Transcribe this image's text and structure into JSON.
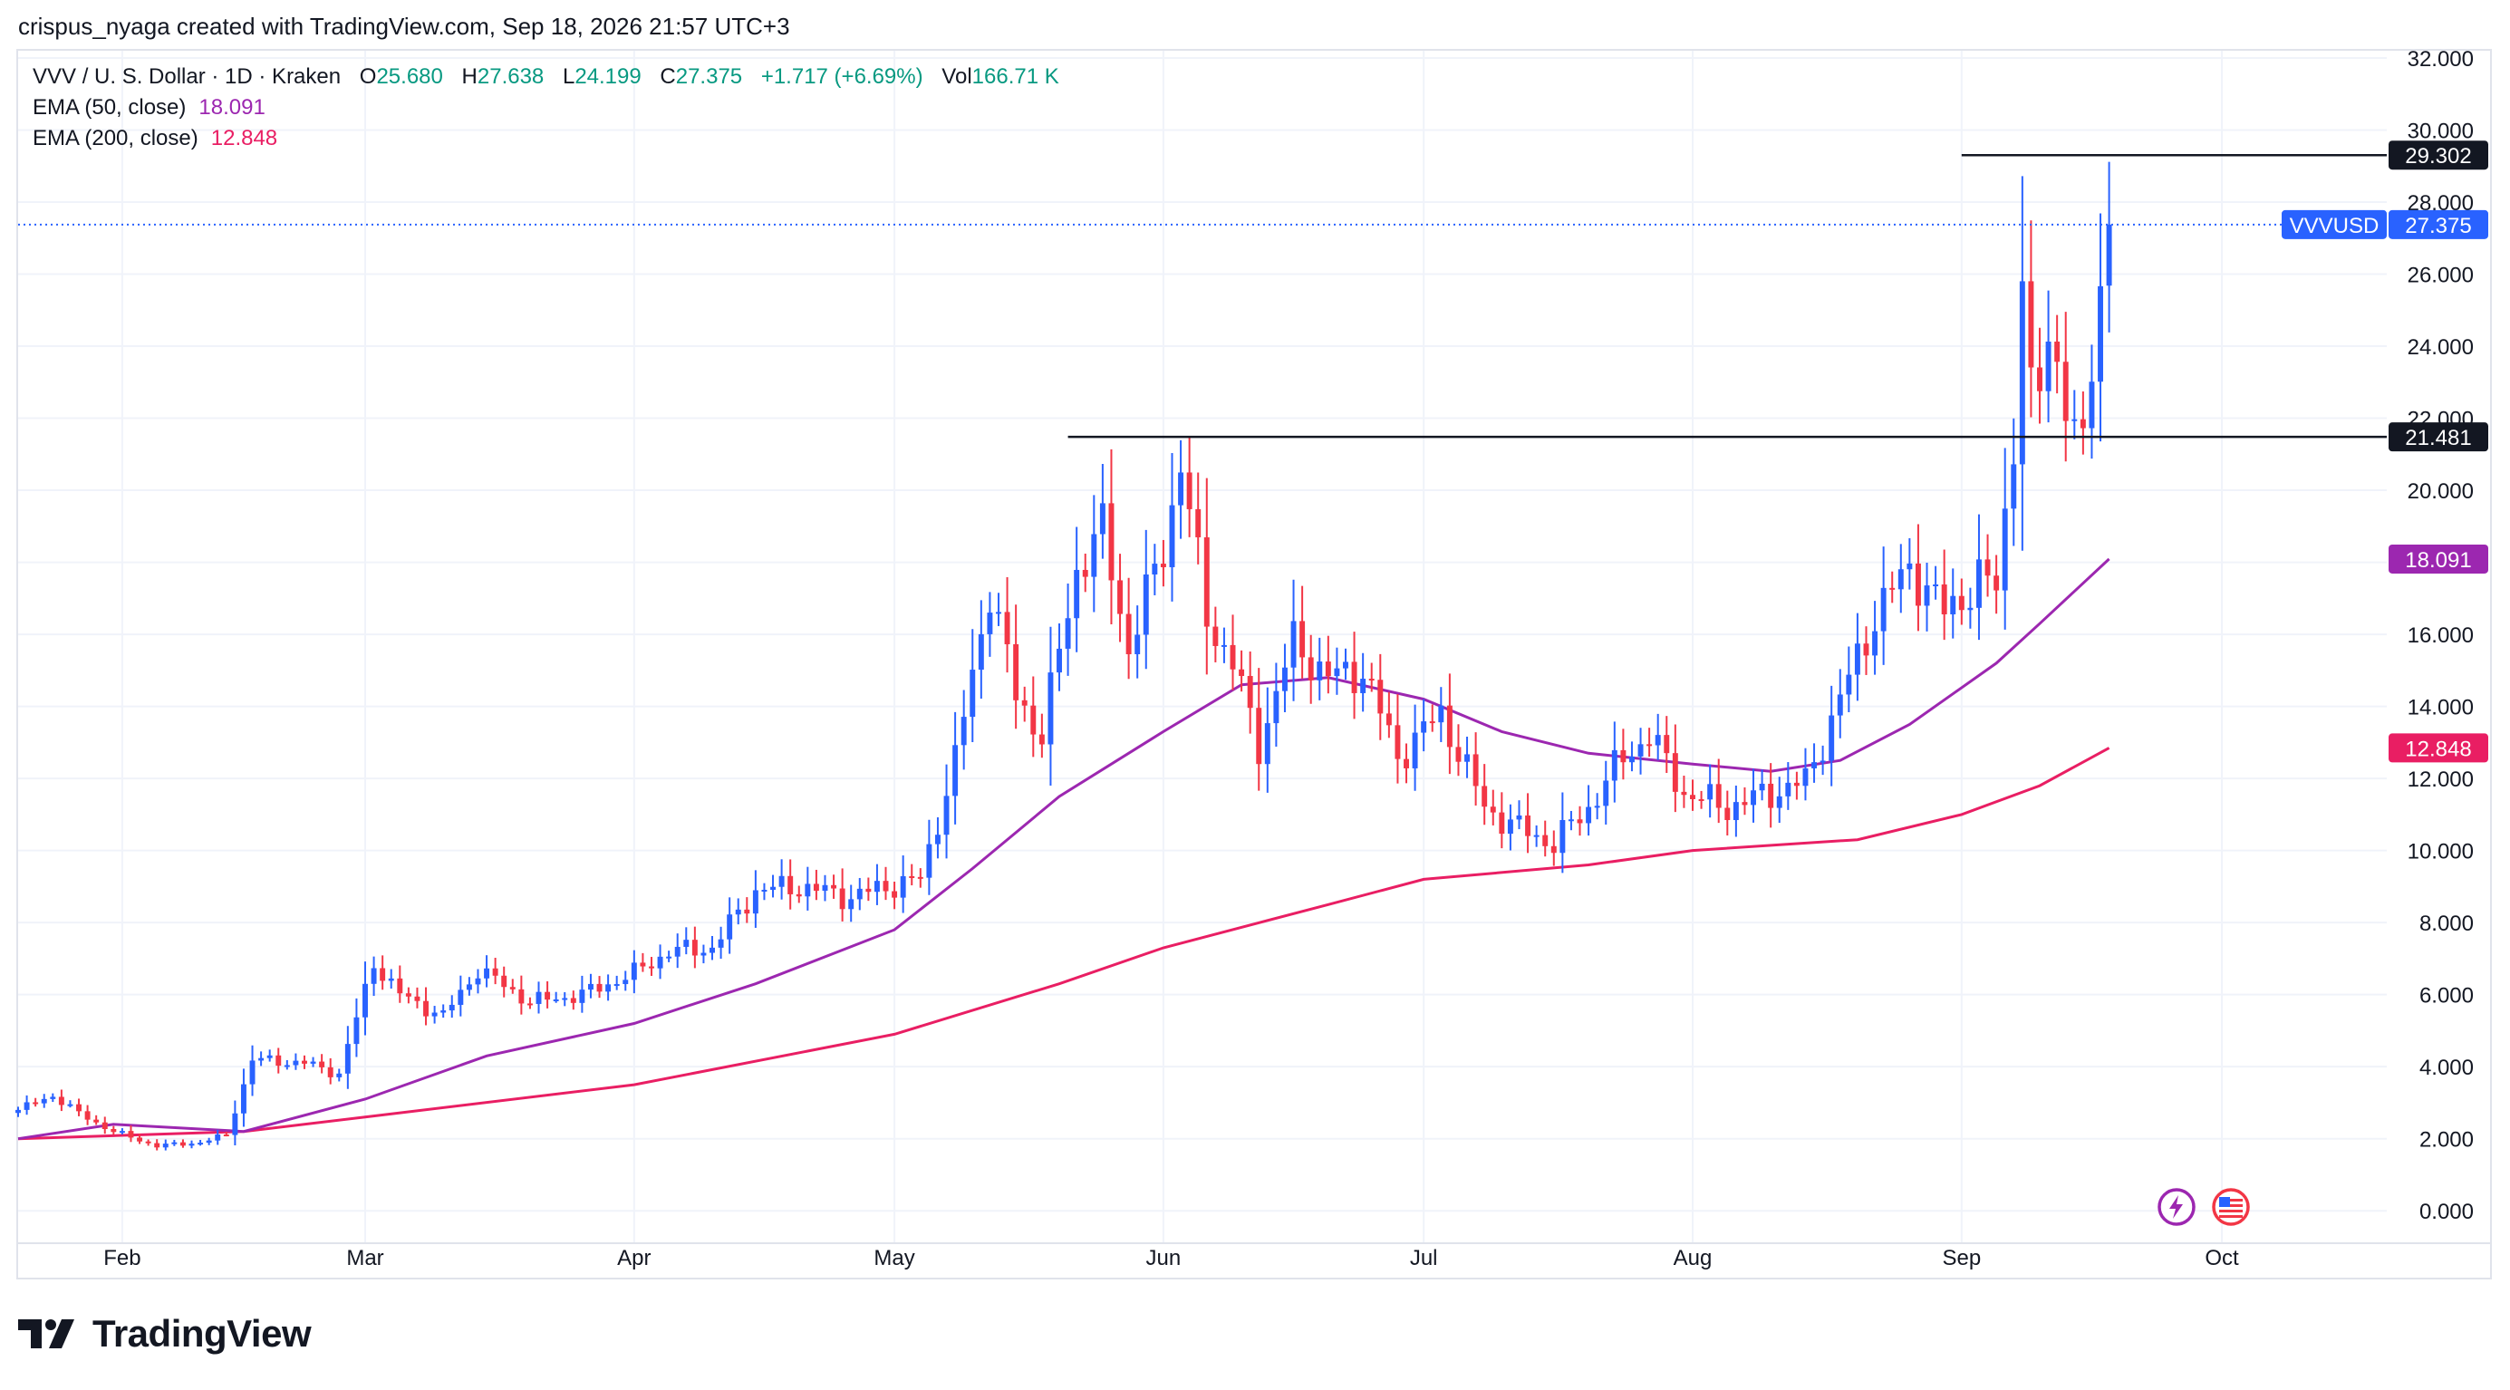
{
  "attribution": "crispus_nyaga created with TradingView.com, Sep 18, 2026 21:57 UTC+3",
  "legend": {
    "symbol": "VVV / U. S. Dollar · 1D · Kraken",
    "o_label": "O",
    "o": "25.680",
    "h_label": "H",
    "h": "27.638",
    "l_label": "L",
    "l": "24.199",
    "c_label": "C",
    "c": "27.375",
    "change": "+1.717 (+6.69%)",
    "vol_label": "Vol",
    "vol": "166.71 K",
    "ema50_label": "EMA (50, close)",
    "ema50": "18.091",
    "ema200_label": "EMA (200, close)",
    "ema200": "12.848"
  },
  "brand": "TradingView",
  "icons": [
    "lightning-icon",
    "us-flag-icon"
  ],
  "chart_data": {
    "type": "candlestick",
    "title": "",
    "x_tick_labels": [
      "Feb",
      "Mar",
      "Apr",
      "May",
      "Jun",
      "Jul",
      "Aug",
      "Sep",
      "Oct"
    ],
    "x_tick_dates": [
      "2026-02-01",
      "2026-03-01",
      "2026-04-01",
      "2026-05-01",
      "2026-06-01",
      "2026-07-01",
      "2026-08-01",
      "2026-09-01",
      "2026-10-01"
    ],
    "x_range": [
      "2026-01-20",
      "2026-10-20"
    ],
    "y_tick_labels": [
      "0.000",
      "2.000",
      "4.000",
      "6.000",
      "8.000",
      "10.000",
      "12.000",
      "14.000",
      "16.000",
      "18.000",
      "20.000",
      "22.000",
      "24.000",
      "26.000",
      "28.000",
      "30.000",
      "32.000"
    ],
    "ylim": [
      -0.9,
      32.2
    ],
    "colors": {
      "up": "#2962ff",
      "down": "#f23645",
      "ema50": "#9c27b0",
      "ema200": "#e91e63",
      "price_line": "#2962ff",
      "hline": "#131722",
      "grid": "#f0f3fa"
    },
    "horizontal_lines": [
      {
        "value": 29.302,
        "label": "29.302",
        "from": "2026-09-01"
      },
      {
        "value": 21.481,
        "label": "21.481",
        "from": "2026-05-21"
      }
    ],
    "last_price": {
      "symbol": "VVVUSD",
      "value": 27.375,
      "label": "27.375"
    },
    "ema50_tag": "18.091",
    "ema200_tag": "12.848",
    "anchors": [
      [
        "2026-01-20",
        2.8
      ],
      [
        "2026-01-24",
        3.2
      ],
      [
        "2026-01-27",
        2.7
      ],
      [
        "2026-01-31",
        2.2
      ],
      [
        "2026-02-05",
        1.8
      ],
      [
        "2026-02-10",
        1.9
      ],
      [
        "2026-02-13",
        2.1
      ],
      [
        "2026-02-16",
        4.2
      ],
      [
        "2026-02-22",
        4.1
      ],
      [
        "2026-02-26",
        3.8
      ],
      [
        "2026-03-02",
        6.9
      ],
      [
        "2026-03-05",
        6.0
      ],
      [
        "2026-03-10",
        5.4
      ],
      [
        "2026-03-14",
        6.7
      ],
      [
        "2026-03-20",
        5.8
      ],
      [
        "2026-03-26",
        6.0
      ],
      [
        "2026-04-01",
        6.6
      ],
      [
        "2026-04-05",
        7.2
      ],
      [
        "2026-04-10",
        7.3
      ],
      [
        "2026-04-15",
        8.9
      ],
      [
        "2026-04-20",
        9.0
      ],
      [
        "2026-04-26",
        8.7
      ],
      [
        "2026-04-30",
        9.0
      ],
      [
        "2026-05-04",
        9.2
      ],
      [
        "2026-05-08",
        12.5
      ],
      [
        "2026-05-12",
        17.3
      ],
      [
        "2026-05-15",
        14.3
      ],
      [
        "2026-05-18",
        13.2
      ],
      [
        "2026-05-22",
        17.8
      ],
      [
        "2026-05-25",
        18.9
      ],
      [
        "2026-05-28",
        15.6
      ],
      [
        "2026-06-01",
        18.4
      ],
      [
        "2026-06-03",
        20.8
      ],
      [
        "2026-06-06",
        16.5
      ],
      [
        "2026-06-09",
        15.2
      ],
      [
        "2026-06-12",
        12.9
      ],
      [
        "2026-06-16",
        15.8
      ],
      [
        "2026-06-20",
        14.8
      ],
      [
        "2026-06-24",
        15.0
      ],
      [
        "2026-06-28",
        12.6
      ],
      [
        "2026-07-03",
        13.8
      ],
      [
        "2026-07-08",
        11.2
      ],
      [
        "2026-07-12",
        10.6
      ],
      [
        "2026-07-16",
        10.2
      ],
      [
        "2026-07-20",
        11.2
      ],
      [
        "2026-07-24",
        12.6
      ],
      [
        "2026-07-27",
        13.2
      ],
      [
        "2026-07-31",
        11.6
      ],
      [
        "2026-08-05",
        11.2
      ],
      [
        "2026-08-10",
        11.6
      ],
      [
        "2026-08-14",
        11.9
      ],
      [
        "2026-08-18",
        14.2
      ],
      [
        "2026-08-22",
        16.5
      ],
      [
        "2026-08-26",
        17.9
      ],
      [
        "2026-08-30",
        16.6
      ],
      [
        "2026-09-03",
        17.5
      ],
      [
        "2026-09-05",
        17.3
      ],
      [
        "2026-09-07",
        21.5
      ],
      [
        "2026-09-08",
        25.8
      ],
      [
        "2026-09-09",
        22.5
      ],
      [
        "2026-09-10",
        22.9
      ],
      [
        "2026-09-11",
        24.2
      ],
      [
        "2026-09-12",
        23.8
      ],
      [
        "2026-09-13",
        22.6
      ],
      [
        "2026-09-14",
        21.3
      ],
      [
        "2026-09-15",
        21.2
      ],
      [
        "2026-09-16",
        23.5
      ],
      [
        "2026-09-17",
        25.68
      ],
      [
        "2026-09-18",
        27.375
      ]
    ],
    "ema50_points": [
      [
        "2026-01-20",
        2.0
      ],
      [
        "2026-01-31",
        2.4
      ],
      [
        "2026-02-15",
        2.2
      ],
      [
        "2026-03-01",
        3.1
      ],
      [
        "2026-03-15",
        4.3
      ],
      [
        "2026-04-01",
        5.2
      ],
      [
        "2026-04-15",
        6.3
      ],
      [
        "2026-05-01",
        7.8
      ],
      [
        "2026-05-10",
        9.5
      ],
      [
        "2026-05-20",
        11.5
      ],
      [
        "2026-06-01",
        13.3
      ],
      [
        "2026-06-10",
        14.6
      ],
      [
        "2026-06-20",
        14.8
      ],
      [
        "2026-07-01",
        14.2
      ],
      [
        "2026-07-10",
        13.3
      ],
      [
        "2026-07-20",
        12.7
      ],
      [
        "2026-08-01",
        12.4
      ],
      [
        "2026-08-10",
        12.2
      ],
      [
        "2026-08-18",
        12.5
      ],
      [
        "2026-08-26",
        13.5
      ],
      [
        "2026-09-05",
        15.2
      ],
      [
        "2026-09-10",
        16.3
      ],
      [
        "2026-09-18",
        18.091
      ]
    ],
    "ema200_points": [
      [
        "2026-01-20",
        2.0
      ],
      [
        "2026-02-15",
        2.2
      ],
      [
        "2026-03-01",
        2.6
      ],
      [
        "2026-04-01",
        3.5
      ],
      [
        "2026-05-01",
        4.9
      ],
      [
        "2026-05-20",
        6.3
      ],
      [
        "2026-06-01",
        7.3
      ],
      [
        "2026-06-20",
        8.5
      ],
      [
        "2026-07-01",
        9.2
      ],
      [
        "2026-07-20",
        9.6
      ],
      [
        "2026-08-01",
        10.0
      ],
      [
        "2026-08-20",
        10.3
      ],
      [
        "2026-09-01",
        11.0
      ],
      [
        "2026-09-10",
        11.8
      ],
      [
        "2026-09-18",
        12.848
      ]
    ]
  }
}
